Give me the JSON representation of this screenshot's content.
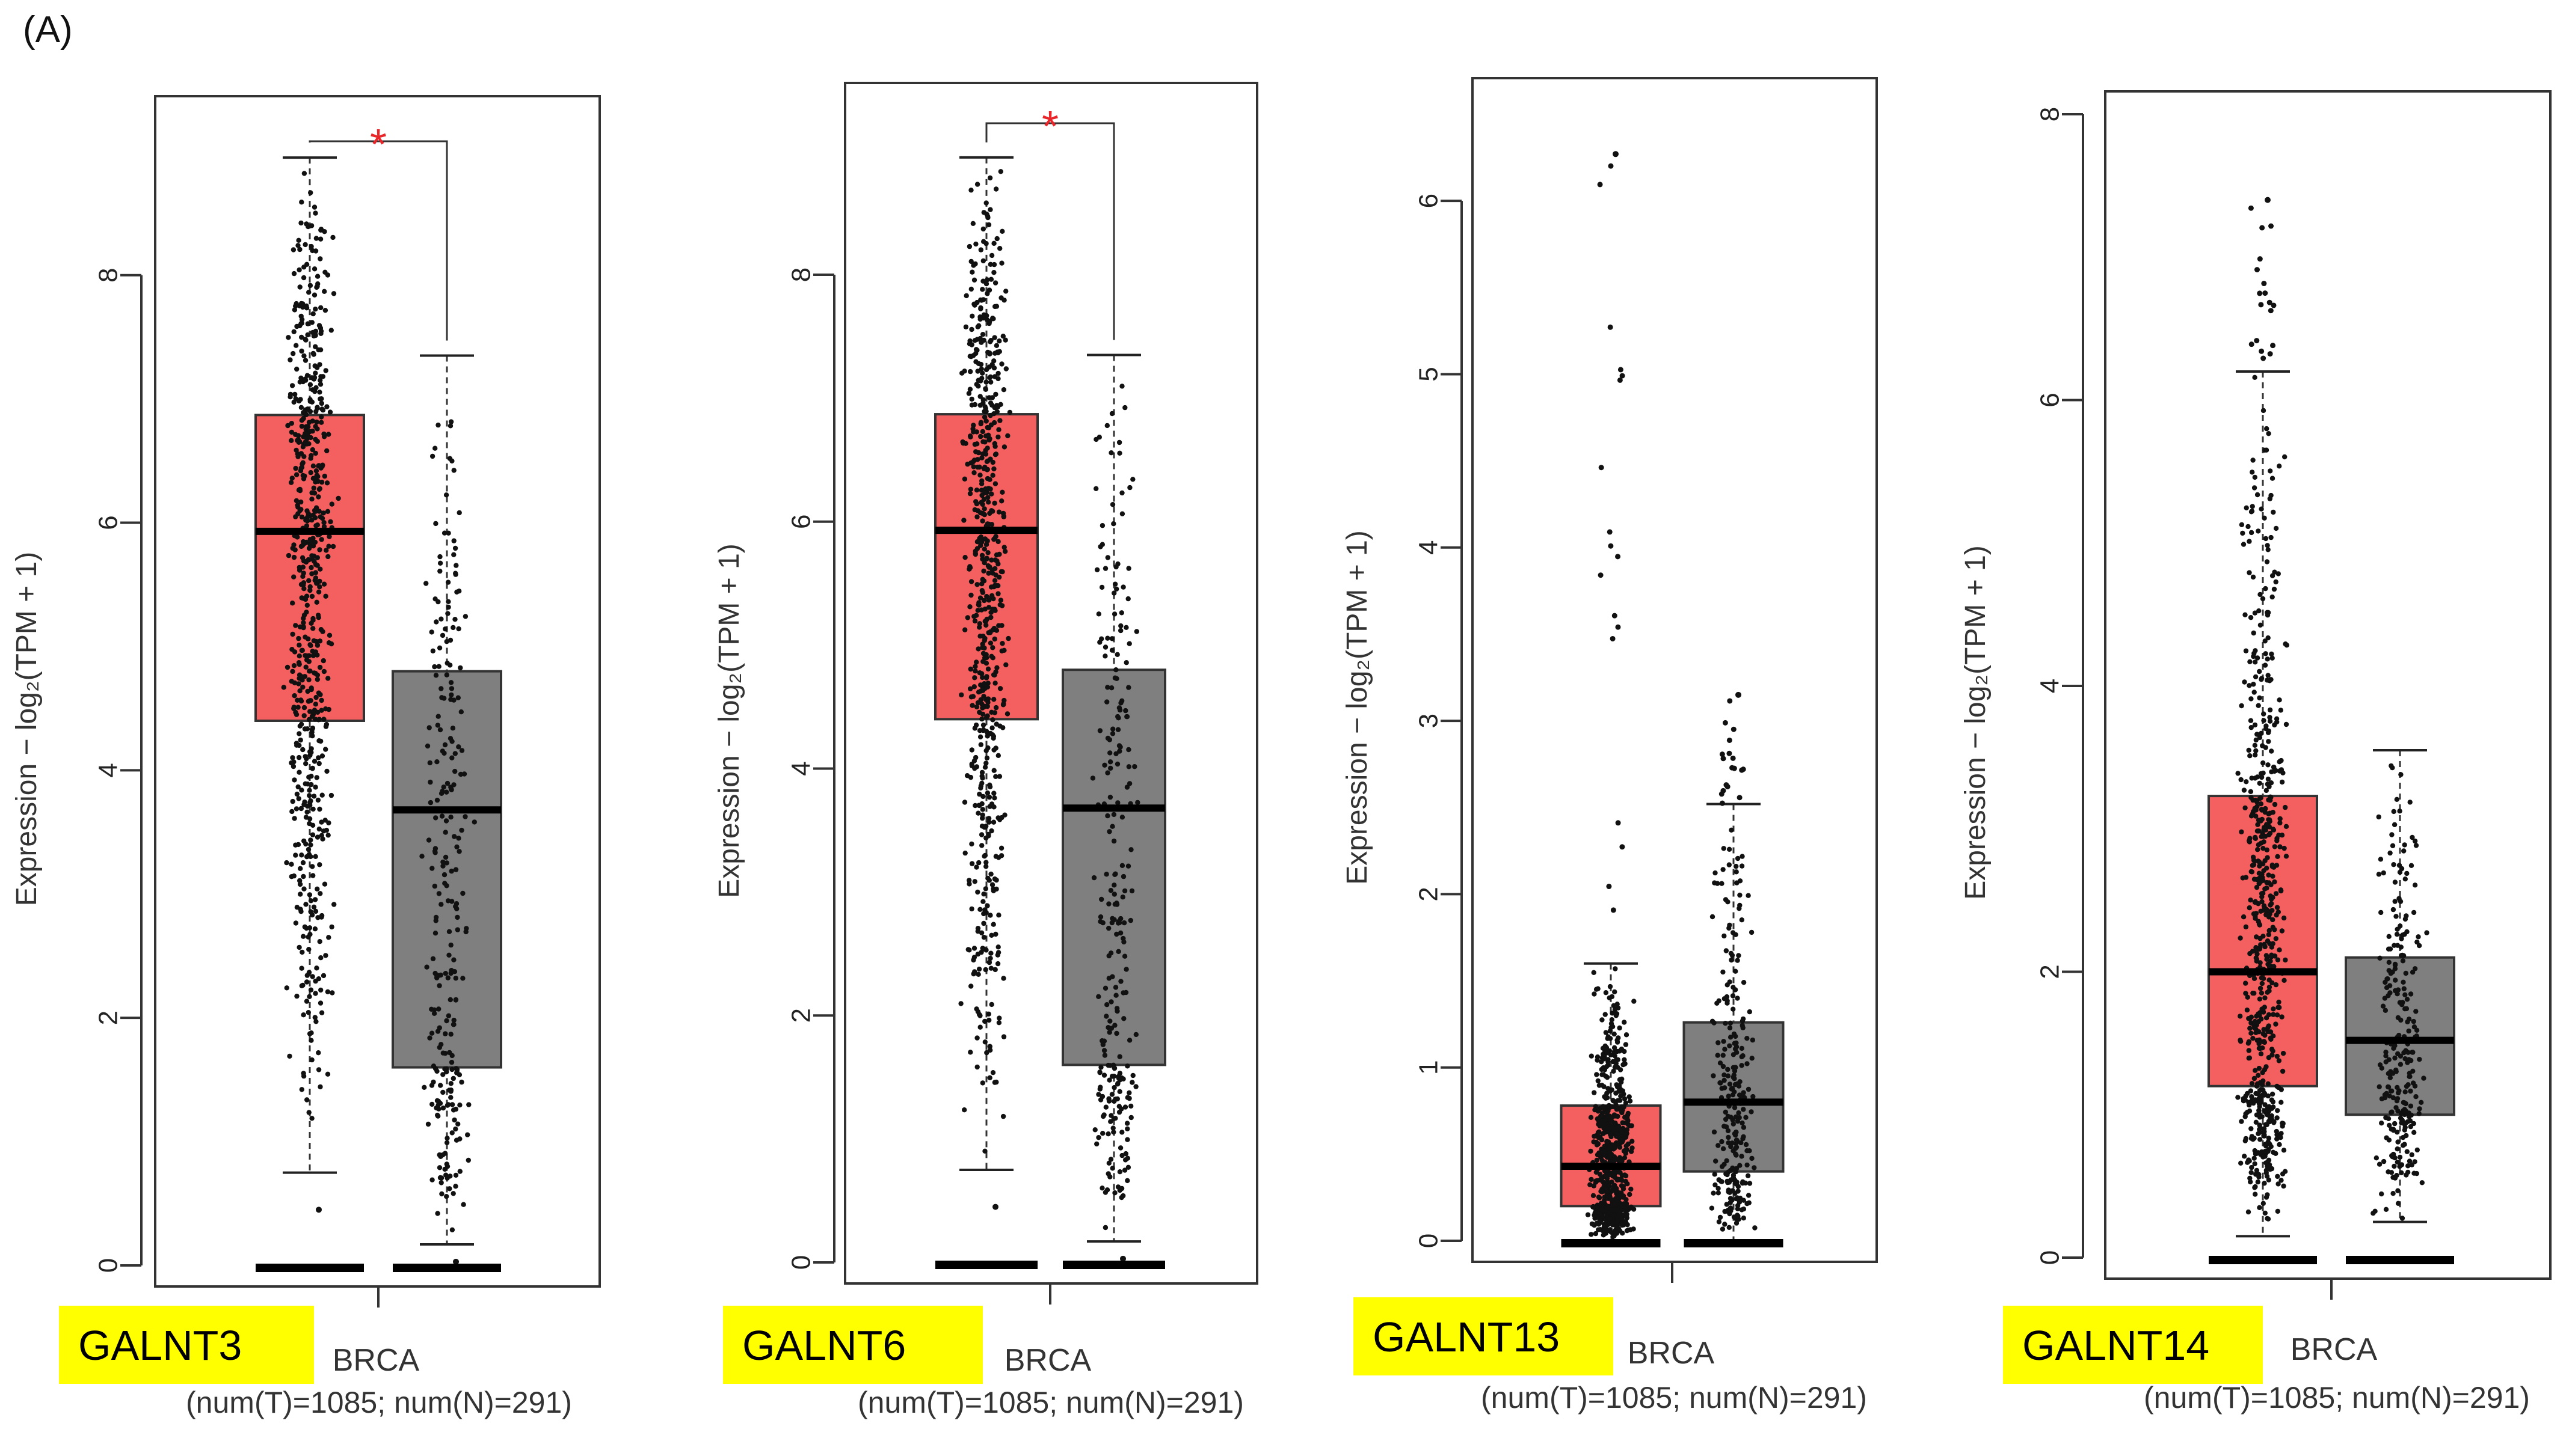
{
  "panel_label": "(A)",
  "chart_data": [
    {
      "type": "box",
      "gene_label": "GALNT3",
      "ylabel": "Expression − log₂(TPM + 1)",
      "yticks": [
        0,
        2,
        4,
        6,
        8
      ],
      "ylim": [
        0,
        9.3
      ],
      "xlabel": "BRCA",
      "sample_note": "(num(T)=1085; num(N)=291)",
      "significance": "*",
      "colors": {
        "tumor": "#f4605f",
        "normal": "#7f7f7f",
        "star": "#e8262a",
        "highlight": "#ffff00"
      },
      "series": [
        {
          "name": "T",
          "q1": 4.4,
          "median": 5.93,
          "q3": 6.87,
          "whisker_low": 0.75,
          "whisker_high": 8.95,
          "min_outlier": 0.45,
          "count": 1085
        },
        {
          "name": "N",
          "q1": 1.6,
          "median": 3.68,
          "q3": 4.8,
          "whisker_low": 0.17,
          "whisker_high": 7.35,
          "min_outlier": 0.03,
          "count": 291
        }
      ]
    },
    {
      "type": "box",
      "gene_label": "GALNT6",
      "ylabel": "Expression − log₂(TPM + 1)",
      "yticks": [
        0,
        2,
        4,
        6,
        8
      ],
      "ylim": [
        0,
        9.3
      ],
      "xlabel": "BRCA",
      "sample_note": "(num(T)=1085; num(N)=291)",
      "significance": "*",
      "colors": {
        "tumor": "#f4605f",
        "normal": "#7f7f7f",
        "star": "#e8262a",
        "highlight": "#ffff00"
      },
      "series": [
        {
          "name": "T",
          "q1": 4.4,
          "median": 5.93,
          "q3": 6.87,
          "whisker_low": 0.75,
          "whisker_high": 8.95,
          "min_outlier": 0.45,
          "count": 1085
        },
        {
          "name": "N",
          "q1": 1.6,
          "median": 3.68,
          "q3": 4.8,
          "whisker_low": 0.17,
          "whisker_high": 7.35,
          "min_outlier": 0.03,
          "count": 291
        }
      ]
    },
    {
      "type": "box",
      "gene_label": "GALNT13",
      "ylabel": "Expression − log₂(TPM + 1)",
      "yticks": [
        0,
        1,
        2,
        3,
        4,
        5,
        6
      ],
      "ylim": [
        0,
        6.5
      ],
      "xlabel": "BRCA",
      "sample_note": "(num(T)=1085; num(N)=291)",
      "significance": "",
      "colors": {
        "tumor": "#f4605f",
        "normal": "#7f7f7f",
        "star": "#e8262a",
        "highlight": "#ffff00"
      },
      "series": [
        {
          "name": "T",
          "q1": 0.2,
          "median": 0.43,
          "q3": 0.78,
          "whisker_low": 0.0,
          "whisker_high": 1.6,
          "max_outlier": 6.27,
          "count": 1085
        },
        {
          "name": "N",
          "q1": 0.4,
          "median": 0.8,
          "q3": 1.26,
          "whisker_low": 0.0,
          "whisker_high": 2.52,
          "max_outlier": 3.15,
          "count": 291
        }
      ]
    },
    {
      "type": "box",
      "gene_label": "GALNT14",
      "ylabel": "Expression − log₂(TPM + 1)",
      "yticks": [
        0,
        2,
        4,
        6,
        8
      ],
      "ylim": [
        0,
        8
      ],
      "xlabel": "BRCA",
      "sample_note": "(num(T)=1085; num(N)=291)",
      "significance": "",
      "colors": {
        "tumor": "#f4605f",
        "normal": "#7f7f7f",
        "star": "#e8262a",
        "highlight": "#ffff00"
      },
      "series": [
        {
          "name": "T",
          "q1": 1.2,
          "median": 2.0,
          "q3": 3.23,
          "whisker_low": 0.15,
          "whisker_high": 6.2,
          "max_outlier": 7.4,
          "count": 1085
        },
        {
          "name": "N",
          "q1": 1.0,
          "median": 1.52,
          "q3": 2.1,
          "whisker_low": 0.25,
          "whisker_high": 3.55,
          "count": 291
        }
      ]
    }
  ]
}
